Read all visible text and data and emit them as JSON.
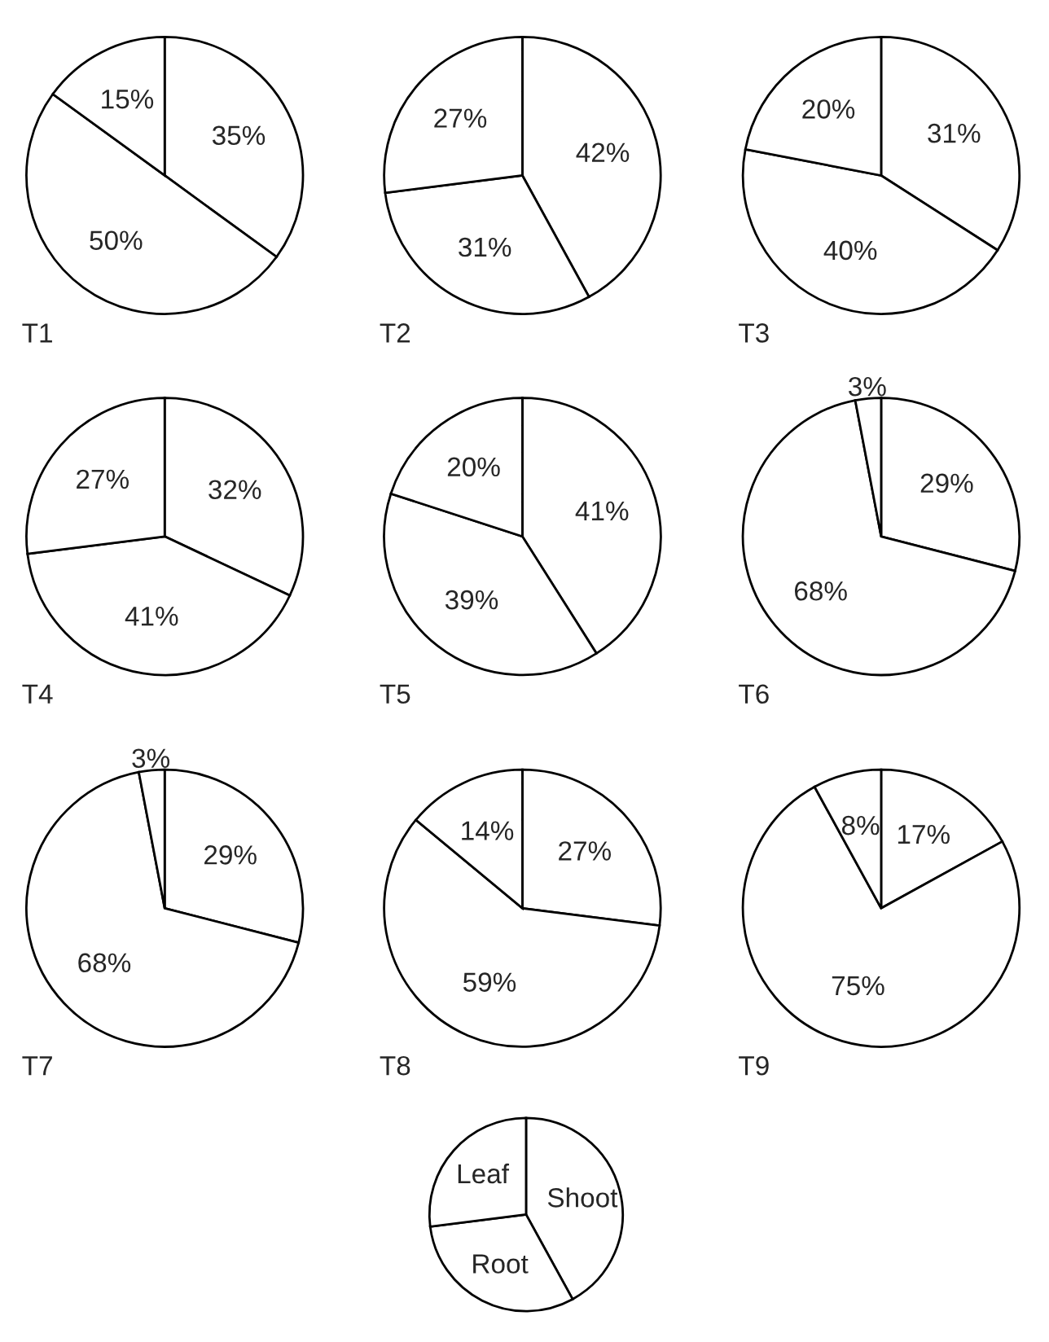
{
  "chart_data": [
    {
      "type": "pie",
      "title": "T1",
      "categories": [
        null,
        null,
        null
      ],
      "values": [
        35,
        50,
        15
      ],
      "colors": [
        "#ffffff",
        "#ffffff",
        "#ffffff"
      ],
      "value_labels": [
        "35%",
        "50%",
        "15%"
      ]
    },
    {
      "type": "pie",
      "title": "T2",
      "categories": [
        null,
        null,
        null
      ],
      "values": [
        42,
        31,
        27
      ],
      "colors": [
        "#ffffff",
        "#ffffff",
        "#ffffff"
      ],
      "value_labels": [
        "42%",
        "31%",
        "27%"
      ]
    },
    {
      "type": "pie",
      "title": "T3",
      "categories": [
        null,
        null,
        null
      ],
      "values": [
        31,
        40,
        20
      ],
      "colors": [
        "#ffffff",
        "#ffffff",
        "#ffffff"
      ],
      "value_labels": [
        "31%",
        "40%",
        "20%"
      ]
    },
    {
      "type": "pie",
      "title": "T4",
      "categories": [
        null,
        null,
        null
      ],
      "values": [
        32,
        41,
        27
      ],
      "colors": [
        "#ffffff",
        "#ffffff",
        "#ffffff"
      ],
      "value_labels": [
        "32%",
        "41%",
        "27%"
      ]
    },
    {
      "type": "pie",
      "title": "T5",
      "categories": [
        null,
        null,
        null
      ],
      "values": [
        41,
        39,
        20
      ],
      "colors": [
        "#ffffff",
        "#ffffff",
        "#ffffff"
      ],
      "value_labels": [
        "41%",
        "39%",
        "20%"
      ]
    },
    {
      "type": "pie",
      "title": "T6",
      "categories": [
        null,
        null,
        null
      ],
      "values": [
        29,
        68,
        3
      ],
      "colors": [
        "#ffffff",
        "#ffffff",
        "#ffffff"
      ],
      "value_labels": [
        "29%",
        "68%",
        "3%"
      ]
    },
    {
      "type": "pie",
      "title": "T7",
      "categories": [
        null,
        null,
        null
      ],
      "values": [
        29,
        68,
        3
      ],
      "colors": [
        "#ffffff",
        "#ffffff",
        "#ffffff"
      ],
      "value_labels": [
        "29%",
        "68%",
        "3%"
      ]
    },
    {
      "type": "pie",
      "title": "T8",
      "categories": [
        null,
        null,
        null
      ],
      "values": [
        27,
        59,
        14
      ],
      "colors": [
        "#ffffff",
        "#ffffff",
        "#ffffff"
      ],
      "value_labels": [
        "27%",
        "59%",
        "14%"
      ]
    },
    {
      "type": "pie",
      "title": "T9",
      "categories": [
        null,
        null,
        null
      ],
      "values": [
        17,
        75,
        8
      ],
      "colors": [
        "#ffffff",
        "#ffffff",
        "#ffffff"
      ],
      "value_labels": [
        "17%",
        "75%",
        "8%"
      ]
    },
    {
      "type": "pie",
      "categories": [
        "Shoot",
        "Root",
        "Leaf"
      ],
      "values": [
        42,
        31,
        27
      ],
      "colors": [
        "#ffffff",
        "#ffffff",
        "#ffffff"
      ]
    }
  ]
}
